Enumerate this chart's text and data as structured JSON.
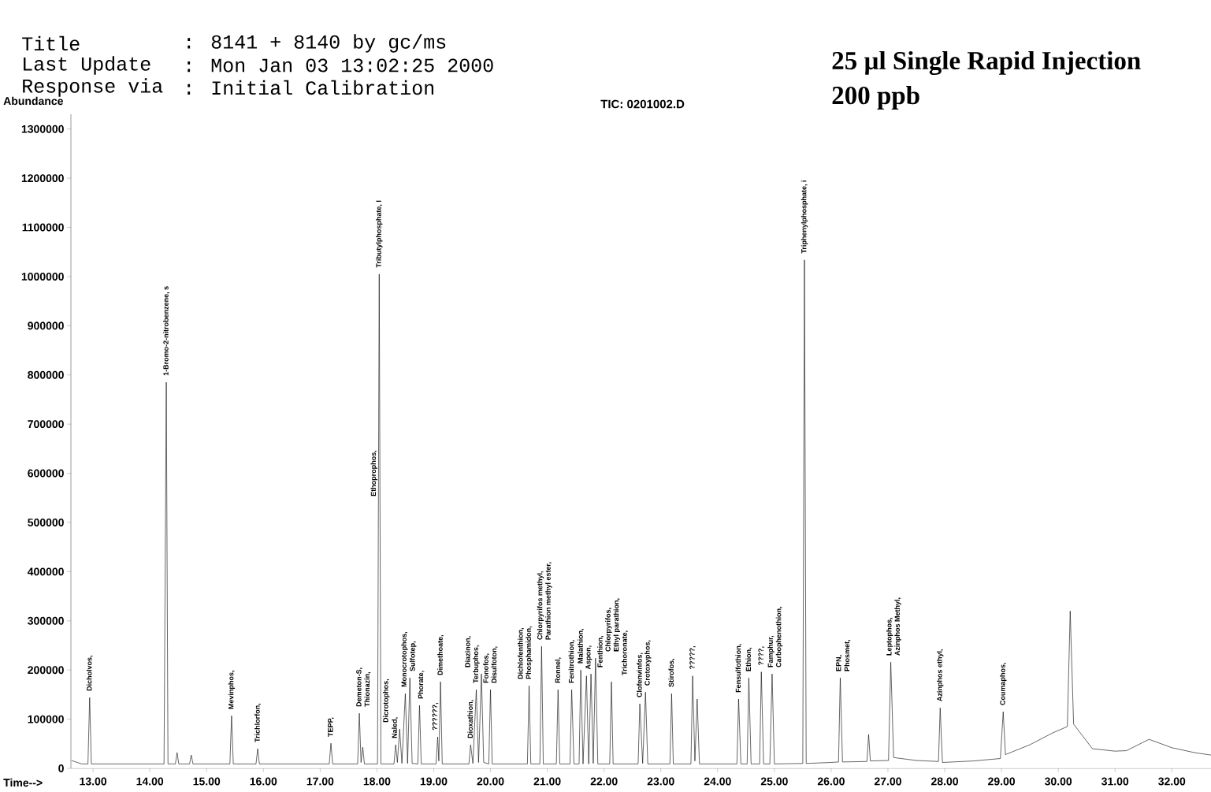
{
  "chart_data": {
    "type": "line",
    "title": "25 µl Single Rapid Injection",
    "subtitle": "200 ppb",
    "xlabel": "Time-->",
    "ylabel": "Abundance",
    "xlim": [
      12.61,
      32.69
    ],
    "ylim": [
      0,
      1330000
    ],
    "xticks": [
      {
        "value": 13,
        "label": "13.00"
      },
      {
        "value": 14,
        "label": "14.00"
      },
      {
        "value": 15,
        "label": "15.00"
      },
      {
        "value": 16,
        "label": "16.00"
      },
      {
        "value": 17,
        "label": "17.00"
      },
      {
        "value": 18,
        "label": "18.00"
      },
      {
        "value": 19,
        "label": "19.00"
      },
      {
        "value": 20,
        "label": "20.00"
      },
      {
        "value": 21,
        "label": "21.00"
      },
      {
        "value": 22,
        "label": "22.00"
      },
      {
        "value": 23,
        "label": "23.00"
      },
      {
        "value": 24,
        "label": "24.00"
      },
      {
        "value": 25,
        "label": "25.00"
      },
      {
        "value": 26,
        "label": "26.00"
      },
      {
        "value": 27,
        "label": "27.00"
      },
      {
        "value": 28,
        "label": "28.00"
      },
      {
        "value": 29,
        "label": "29.00"
      },
      {
        "value": 30,
        "label": "30.00"
      },
      {
        "value": 31,
        "label": "31.00"
      },
      {
        "value": 32,
        "label": "32.00"
      }
    ],
    "yticks": [
      0,
      100000,
      200000,
      300000,
      400000,
      500000,
      600000,
      700000,
      800000,
      900000,
      1000000,
      1100000,
      1200000,
      1300000
    ],
    "line_style": "solid",
    "x": [
      12.62,
      12.8,
      12.91,
      12.94,
      12.97,
      14.25,
      14.29,
      14.32,
      14.45,
      14.48,
      14.51,
      14.7,
      14.73,
      14.76,
      15.41,
      15.44,
      15.47,
      15.87,
      15.9,
      15.93,
      17.16,
      17.19,
      17.22,
      17.66,
      17.69,
      17.72,
      17.75,
      17.78,
      18.01,
      18.04,
      18.07,
      18.3,
      18.33,
      18.36,
      18.4,
      18.44,
      18.5,
      18.54,
      18.58,
      18.62,
      18.72,
      18.75,
      18.78,
      19.04,
      19.07,
      19.09,
      19.12,
      19.15,
      19.62,
      19.65,
      19.69,
      19.75,
      19.79,
      19.84,
      19.88,
      19.97,
      20.0,
      20.03,
      20.65,
      20.68,
      20.71,
      20.87,
      20.9,
      20.93,
      21.16,
      21.19,
      21.22,
      21.4,
      21.43,
      21.47,
      21.56,
      21.59,
      21.63,
      21.69,
      21.73,
      21.77,
      21.81,
      21.85,
      21.89,
      22.1,
      22.13,
      22.16,
      22.6,
      22.63,
      22.68,
      22.73,
      22.77,
      23.16,
      23.19,
      23.22,
      23.53,
      23.56,
      23.6,
      23.64,
      23.68,
      24.34,
      24.37,
      24.41,
      24.52,
      24.55,
      24.59,
      24.74,
      24.77,
      24.81,
      24.92,
      24.96,
      25.0,
      25.5,
      25.53,
      25.56,
      26.0,
      26.13,
      26.16,
      26.2,
      26.63,
      26.66,
      26.69,
      27.01,
      27.05,
      27.1,
      27.5,
      27.89,
      27.92,
      27.96,
      28.5,
      28.98,
      29.03,
      29.07,
      29.5,
      29.9,
      30.16,
      30.21,
      30.27,
      30.6,
      31.0,
      31.2,
      31.6,
      32.0,
      32.4,
      32.69
    ],
    "series": [
      {
        "color": "#000000",
        "values": [
          16000,
          9000,
          9000,
          144000,
          9000,
          9000,
          785000,
          9000,
          9000,
          32000,
          9000,
          9000,
          27000,
          9000,
          9000,
          107000,
          9000,
          9000,
          40000,
          9000,
          9000,
          51000,
          9000,
          9000,
          112000,
          12000,
          43000,
          9000,
          9000,
          1005000,
          9000,
          9000,
          48000,
          12000,
          80000,
          10000,
          152000,
          10000,
          184000,
          10000,
          9000,
          128000,
          9000,
          9000,
          64000,
          15000,
          176000,
          9000,
          9000,
          48000,
          10000,
          160000,
          12000,
          192000,
          12000,
          9000,
          160000,
          9000,
          9000,
          168000,
          9000,
          9000,
          248000,
          9000,
          9000,
          160000,
          9000,
          9000,
          160000,
          9000,
          9000,
          200000,
          9000,
          188000,
          9000,
          192000,
          10000,
          224000,
          9000,
          9000,
          176000,
          9000,
          9000,
          131000,
          10000,
          155000,
          9000,
          9000,
          152000,
          9000,
          9000,
          188000,
          15000,
          141000,
          9000,
          9000,
          141000,
          9000,
          9000,
          184000,
          9000,
          9000,
          196000,
          9000,
          9000,
          192000,
          9000,
          10000,
          1034000,
          10000,
          12000,
          13000,
          184000,
          13000,
          14000,
          69000,
          15000,
          16000,
          216000,
          22000,
          16000,
          14000,
          123000,
          12000,
          15000,
          20000,
          115000,
          28000,
          48000,
          72000,
          85000,
          320000,
          90000,
          40000,
          35000,
          36000,
          59000,
          42000,
          32000,
          27000
        ]
      }
    ],
    "annotations": [
      "Title",
      ": 8141 + 8140 by gc/ms",
      "Last Update",
      ": Mon Jan 03 13:02:25 2000",
      "Response via",
      ": Initial Calibration",
      "TIC: 0201002.D",
      {
        "text": "Dicholvos,",
        "x": 12.94,
        "y": 144000
      },
      {
        "text": "1-Bromo-2-nitrobenzene, s",
        "x": 14.29,
        "y": 785000
      },
      {
        "text": "Mevinphos,",
        "x": 15.44,
        "y": 107000
      },
      {
        "text": "Trichlorfon,",
        "x": 15.9,
        "y": 40000
      },
      {
        "text": "TEPP,",
        "x": 17.19,
        "y": 51000
      },
      {
        "text": "Demeton-S,",
        "x": 17.69,
        "y": 112000
      },
      {
        "text": "Thionazin,",
        "x": 17.75,
        "y": 112000
      },
      {
        "text": "Tributylphosphate, I",
        "x": 18.04,
        "y": 1005000
      },
      {
        "text": "Ethoprophos,",
        "x": 17.99,
        "y": 540000
      },
      {
        "text": "Naled,",
        "x": 18.33,
        "y": 48000
      },
      {
        "text": "Dicrotophos,",
        "x": 18.4,
        "y": 80000
      },
      {
        "text": "Monocrotophos,",
        "x": 18.5,
        "y": 152000
      },
      {
        "text": "Sulfotep,",
        "x": 18.58,
        "y": 184000
      },
      {
        "text": "Phorate,",
        "x": 18.75,
        "y": 128000
      },
      {
        "text": "??????,",
        "x": 19.07,
        "y": 64000
      },
      {
        "text": "Dimethoate,",
        "x": 19.12,
        "y": 176000
      },
      {
        "text": "Dioxathion,",
        "x": 19.65,
        "y": 48000
      },
      {
        "text": "Terbuphos,",
        "x": 19.75,
        "y": 160000
      },
      {
        "text": "Fonofos,",
        "x": 19.8,
        "y": 160000
      },
      {
        "text": "Diazinon,",
        "x": 19.84,
        "y": 192000
      },
      {
        "text": "Disulfoton,",
        "x": 20.0,
        "y": 160000
      },
      {
        "text": "Phosphamidon,",
        "x": 20.68,
        "y": 168000
      },
      {
        "text": "Dichlofenthion,",
        "x": 20.7,
        "y": 168000
      },
      {
        "text": "Chlorpyrifos methyl,",
        "x": 20.88,
        "y": 248000
      },
      {
        "text": "Parathion methyl ester,",
        "x": 20.9,
        "y": 248000
      },
      {
        "text": "Ronnel,",
        "x": 21.19,
        "y": 160000
      },
      {
        "text": "Fenitrothion,",
        "x": 21.43,
        "y": 160000
      },
      {
        "text": "Malathion,",
        "x": 21.59,
        "y": 200000
      },
      {
        "text": "Aspon,",
        "x": 21.69,
        "y": 188000
      },
      {
        "text": "Fenthion,",
        "x": 21.77,
        "y": 192000
      },
      {
        "text": "Chlorpyrifos,",
        "x": 21.83,
        "y": 224000
      },
      {
        "text": "Ethyl parathion,",
        "x": 21.85,
        "y": 224000
      },
      {
        "text": "Trichoronate,",
        "x": 22.13,
        "y": 176000
      },
      {
        "text": "Clofenvinfos,",
        "x": 22.63,
        "y": 131000
      },
      {
        "text": "Crotoxyphos,",
        "x": 22.73,
        "y": 155000
      },
      {
        "text": "Stirofos,",
        "x": 23.19,
        "y": 152000
      },
      {
        "text": "?????,",
        "x": 23.56,
        "y": 188000
      },
      {
        "text": "Fensulfothion,",
        "x": 24.37,
        "y": 141000
      },
      {
        "text": "Ethion,",
        "x": 24.55,
        "y": 184000
      },
      {
        "text": "????,",
        "x": 24.77,
        "y": 196000
      },
      {
        "text": "Famphur,",
        "x": 24.94,
        "y": 192000
      },
      {
        "text": "Carbophenothion,",
        "x": 24.96,
        "y": 192000
      },
      {
        "text": "Triphenylphosphate, i",
        "x": 25.53,
        "y": 1034000
      },
      {
        "text": "EPN,",
        "x": 26.14,
        "y": 184000
      },
      {
        "text": "Phosmet,",
        "x": 26.16,
        "y": 184000
      },
      {
        "text": "Leptophos,",
        "x": 27.03,
        "y": 216000
      },
      {
        "text": "Azinphos Methyl,",
        "x": 27.05,
        "y": 216000
      },
      {
        "text": "Azinphos ethyl,",
        "x": 27.92,
        "y": 123000
      },
      {
        "text": "Coumaphos,",
        "x": 29.03,
        "y": 115000
      }
    ]
  }
}
